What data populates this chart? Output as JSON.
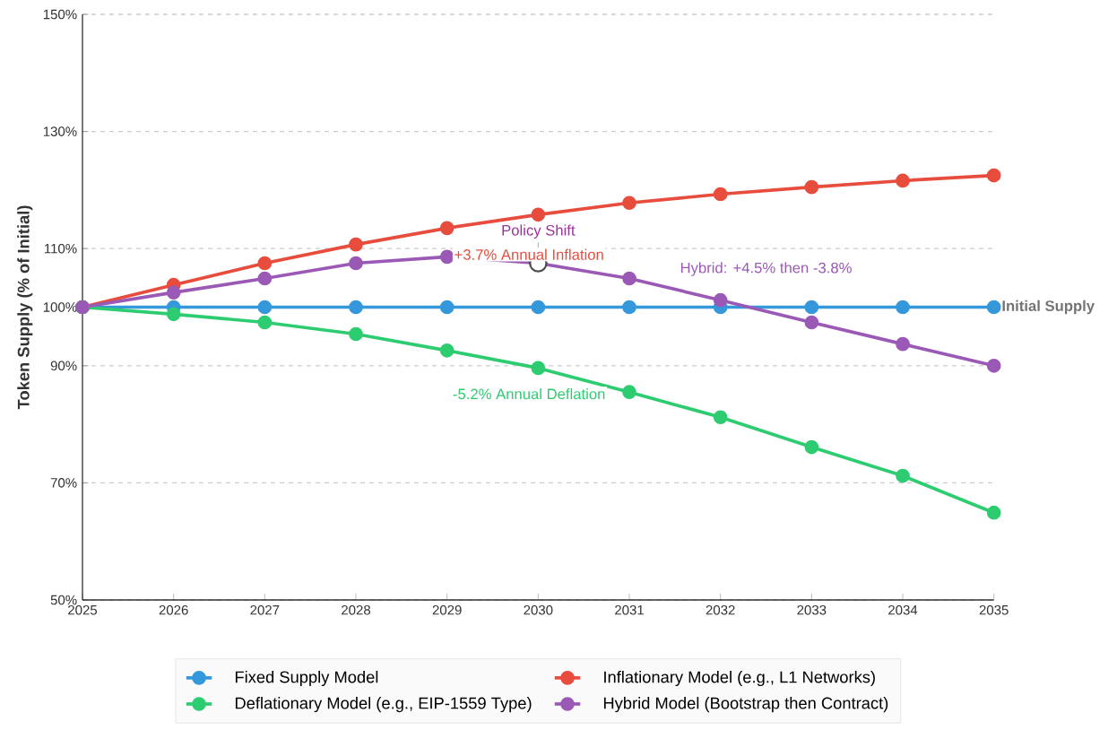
{
  "chart_data": {
    "type": "line",
    "ylabel": "Token Supply (% of Initial)",
    "x": [
      2025,
      2026,
      2027,
      2028,
      2029,
      2030,
      2031,
      2032,
      2033,
      2034,
      2035
    ],
    "xlim": [
      2025,
      2035
    ],
    "xticks": [
      2025,
      2026,
      2027,
      2028,
      2029,
      2030,
      2031,
      2032,
      2033,
      2034,
      2035
    ],
    "ylim": [
      50,
      150
    ],
    "yticks": [
      {
        "value": 50,
        "label": "50%"
      },
      {
        "value": 70,
        "label": "70%"
      },
      {
        "value": 90,
        "label": "90%"
      },
      {
        "value": 100,
        "label": "100%"
      },
      {
        "value": 110,
        "label": "110%"
      },
      {
        "value": 130,
        "label": "130%"
      },
      {
        "value": 150,
        "label": "150%"
      }
    ],
    "grid": "y",
    "legend": "bottom",
    "marker": "circle",
    "line_style": "solid",
    "series": [
      {
        "name": "Fixed Supply Model",
        "color": "#3498db",
        "values": [
          100,
          100,
          100,
          100,
          100,
          100,
          100,
          100,
          100,
          100,
          100
        ]
      },
      {
        "name": "Inflationary Model (e.g., L1 Networks)",
        "color": "#e74c3c",
        "values": [
          100,
          103.8,
          107.5,
          110.7,
          113.5,
          115.8,
          117.8,
          119.3,
          120.5,
          121.6,
          122.5
        ]
      },
      {
        "name": "Deflationary Model (e.g., EIP-1559 Type)",
        "color": "#2ecc71",
        "values": [
          100,
          98.8,
          97.4,
          95.4,
          92.6,
          89.6,
          85.5,
          81.2,
          76.1,
          71.2,
          64.9
        ]
      },
      {
        "name": "Hybrid Model (Bootstrap then Contract)",
        "color": "#9b59b6",
        "values": [
          100,
          102.5,
          104.9,
          107.5,
          108.6,
          107.5,
          104.9,
          101.2,
          97.4,
          93.7,
          90
        ]
      }
    ],
    "annotations": [
      {
        "text": "Policy Shift",
        "x": 2030,
        "y": 107.5
      },
      "+3.7% Annual Inflation",
      "Hybrid: +4.5% then -3.8%",
      "-5.2% Annual Deflation",
      {
        "text": "Initial Supply",
        "x": 2035,
        "y": 100
      }
    ]
  }
}
